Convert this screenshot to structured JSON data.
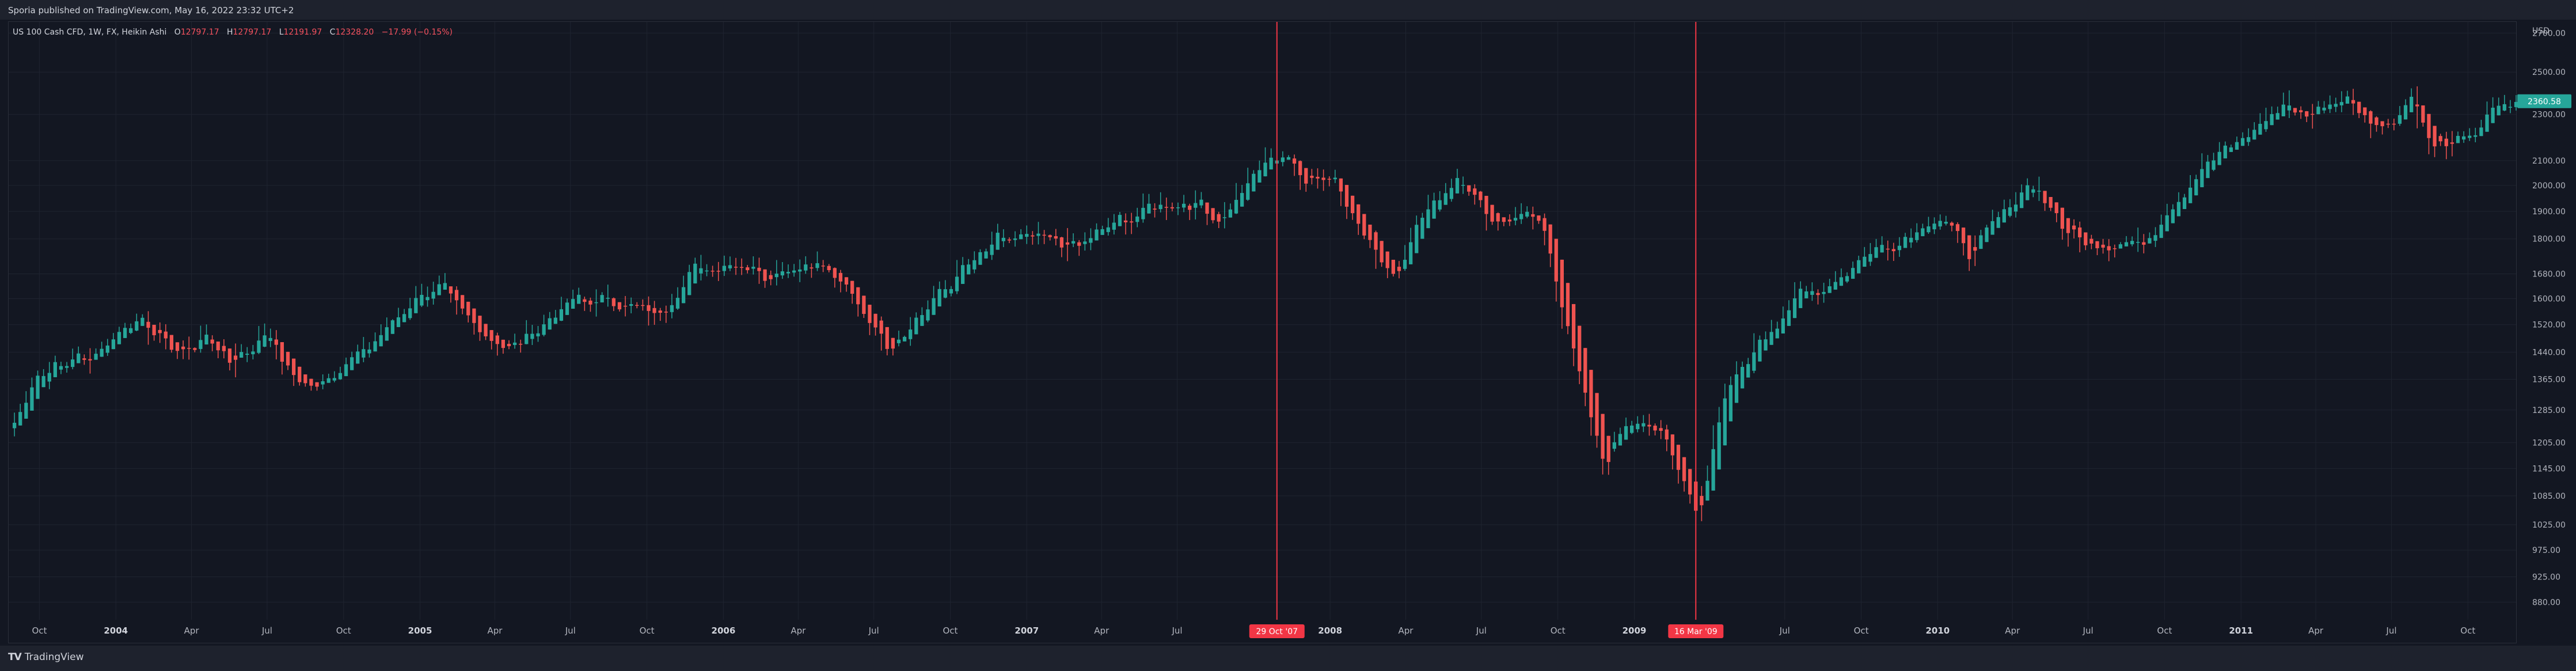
{
  "header": {
    "published": "Sporia published on TradingView.com, May 16, 2022 23:32 UTC+2"
  },
  "legend": {
    "symbol": "US 100 Cash CFD, 1W, FX, Heikin Ashi",
    "o_label": "O",
    "o": "12797.17",
    "h_label": "H",
    "h": "12797.17",
    "l_label": "L",
    "l": "12191.97",
    "c_label": "C",
    "c": "12328.20",
    "change": "−17.99 (−0.15%)"
  },
  "price_scale": {
    "currency": "USD",
    "last_price_label": "2360.58"
  },
  "footer": {
    "brand": "TradingView",
    "logo": "TV"
  },
  "colors": {
    "up": "#26a69a",
    "down": "#ef5350",
    "marker": "#f23645",
    "background": "#131722",
    "grid": "#1f2430"
  },
  "chart_data": {
    "type": "candlestick",
    "style": "Heikin Ashi",
    "interval": "1W",
    "symbol": "US 100 Cash CFD",
    "ylim": [
      850,
      2760
    ],
    "y_ticks": [
      880,
      925,
      975,
      1025,
      1085,
      1145,
      1205,
      1285,
      1365,
      1440,
      1520,
      1600,
      1680,
      1800,
      1900,
      2000,
      2100,
      2300,
      2500,
      2700
    ],
    "y_tick_labels": [
      "880.00",
      "925.00",
      "975.00",
      "1025.00",
      "1085.00",
      "1145.00",
      "1205.00",
      "1285.00",
      "1365.00",
      "1440.00",
      "1520.00",
      "1600.00",
      "1680.00",
      "1800.00",
      "1900.00",
      "2000.00",
      "2100.00",
      "2300.00",
      "2500.00",
      "2700.00"
    ],
    "x_range": [
      "2003-08-25",
      "2011-11-28"
    ],
    "x_ticks": [
      {
        "date": "2003-10-01",
        "label": "Oct",
        "year": false
      },
      {
        "date": "2004-01-01",
        "label": "2004",
        "year": true
      },
      {
        "date": "2004-04-01",
        "label": "Apr",
        "year": false
      },
      {
        "date": "2004-07-01",
        "label": "Jul",
        "year": false
      },
      {
        "date": "2004-10-01",
        "label": "Oct",
        "year": false
      },
      {
        "date": "2005-01-01",
        "label": "2005",
        "year": true
      },
      {
        "date": "2005-04-01",
        "label": "Apr",
        "year": false
      },
      {
        "date": "2005-07-01",
        "label": "Jul",
        "year": false
      },
      {
        "date": "2005-10-01",
        "label": "Oct",
        "year": false
      },
      {
        "date": "2006-01-01",
        "label": "2006",
        "year": true
      },
      {
        "date": "2006-04-01",
        "label": "Apr",
        "year": false
      },
      {
        "date": "2006-07-01",
        "label": "Jul",
        "year": false
      },
      {
        "date": "2006-10-01",
        "label": "Oct",
        "year": false
      },
      {
        "date": "2007-01-01",
        "label": "2007",
        "year": true
      },
      {
        "date": "2007-04-01",
        "label": "Apr",
        "year": false
      },
      {
        "date": "2007-07-01",
        "label": "Jul",
        "year": false
      },
      {
        "date": "2008-01-01",
        "label": "2008",
        "year": true
      },
      {
        "date": "2008-04-01",
        "label": "Apr",
        "year": false
      },
      {
        "date": "2008-07-01",
        "label": "Jul",
        "year": false
      },
      {
        "date": "2008-10-01",
        "label": "Oct",
        "year": false
      },
      {
        "date": "2009-01-01",
        "label": "2009",
        "year": true
      },
      {
        "date": "2009-07-01",
        "label": "Jul",
        "year": false
      },
      {
        "date": "2009-10-01",
        "label": "Oct",
        "year": false
      },
      {
        "date": "2010-01-01",
        "label": "2010",
        "year": true
      },
      {
        "date": "2010-04-01",
        "label": "Apr",
        "year": false
      },
      {
        "date": "2010-07-01",
        "label": "Jul",
        "year": false
      },
      {
        "date": "2010-10-01",
        "label": "Oct",
        "year": false
      },
      {
        "date": "2011-01-01",
        "label": "2011",
        "year": true
      },
      {
        "date": "2011-04-01",
        "label": "Apr",
        "year": false
      },
      {
        "date": "2011-07-01",
        "label": "Jul",
        "year": false
      },
      {
        "date": "2011-10-01",
        "label": "Oct",
        "year": false
      }
    ],
    "markers": [
      {
        "date": "2007-10-29",
        "label": "29 Oct '07"
      },
      {
        "date": "2009-03-16",
        "label": "16 Mar '09"
      }
    ],
    "last_price": 2360.58,
    "anchor_points": [
      [
        "2003-08-25",
        1240
      ],
      [
        "2003-09-22",
        1370
      ],
      [
        "2003-10-27",
        1410
      ],
      [
        "2003-12-01",
        1430
      ],
      [
        "2004-01-19",
        1540
      ],
      [
        "2004-03-15",
        1440
      ],
      [
        "2004-04-19",
        1480
      ],
      [
        "2004-05-17",
        1415
      ],
      [
        "2004-06-28",
        1490
      ],
      [
        "2004-08-09",
        1340
      ],
      [
        "2004-09-20",
        1390
      ],
      [
        "2004-11-01",
        1460
      ],
      [
        "2004-12-27",
        1615
      ],
      [
        "2005-01-24",
        1630
      ],
      [
        "2005-02-21",
        1540
      ],
      [
        "2005-04-18",
        1445
      ],
      [
        "2005-05-23",
        1520
      ],
      [
        "2005-07-04",
        1595
      ],
      [
        "2005-08-22",
        1590
      ],
      [
        "2005-10-10",
        1550
      ],
      [
        "2005-11-21",
        1690
      ],
      [
        "2006-01-09",
        1720
      ],
      [
        "2006-02-20",
        1680
      ],
      [
        "2006-04-17",
        1725
      ],
      [
        "2006-05-29",
        1620
      ],
      [
        "2006-07-17",
        1460
      ],
      [
        "2006-08-28",
        1565
      ],
      [
        "2006-10-09",
        1680
      ],
      [
        "2006-11-27",
        1795
      ],
      [
        "2007-01-15",
        1800
      ],
      [
        "2007-02-26",
        1770
      ],
      [
        "2007-04-16",
        1860
      ],
      [
        "2007-06-04",
        1920
      ],
      [
        "2007-07-23",
        1940
      ],
      [
        "2007-08-20",
        1860
      ],
      [
        "2007-09-24",
        2020
      ],
      [
        "2007-10-29",
        2140
      ],
      [
        "2007-11-26",
        2040
      ],
      [
        "2008-01-07",
        2030
      ],
      [
        "2008-02-04",
        1820
      ],
      [
        "2008-03-17",
        1680
      ],
      [
        "2008-04-21",
        1910
      ],
      [
        "2008-06-02",
        2030
      ],
      [
        "2008-07-14",
        1830
      ],
      [
        "2008-08-18",
        1920
      ],
      [
        "2008-09-15",
        1800
      ],
      [
        "2008-10-20",
        1400
      ],
      [
        "2008-11-24",
        1150
      ],
      [
        "2008-12-22",
        1260
      ],
      [
        "2009-01-26",
        1240
      ],
      [
        "2009-03-16",
        1050
      ],
      [
        "2009-04-20",
        1330
      ],
      [
        "2009-06-01",
        1480
      ],
      [
        "2009-07-13",
        1600
      ],
      [
        "2009-08-24",
        1650
      ],
      [
        "2009-10-05",
        1750
      ],
      [
        "2009-11-16",
        1800
      ],
      [
        "2009-12-28",
        1890
      ],
      [
        "2010-02-08",
        1750
      ],
      [
        "2010-04-19",
        2020
      ],
      [
        "2010-05-31",
        1830
      ],
      [
        "2010-07-19",
        1780
      ],
      [
        "2010-08-30",
        1780
      ],
      [
        "2010-10-11",
        1940
      ],
      [
        "2010-11-22",
        2100
      ],
      [
        "2011-01-03",
        2200
      ],
      [
        "2011-02-21",
        2340
      ],
      [
        "2011-03-21",
        2300
      ],
      [
        "2011-05-02",
        2380
      ],
      [
        "2011-06-20",
        2240
      ],
      [
        "2011-07-25",
        2400
      ],
      [
        "2011-08-15",
        2150
      ],
      [
        "2011-09-26",
        2180
      ],
      [
        "2011-10-24",
        2300
      ],
      [
        "2011-11-28",
        2360
      ]
    ]
  }
}
